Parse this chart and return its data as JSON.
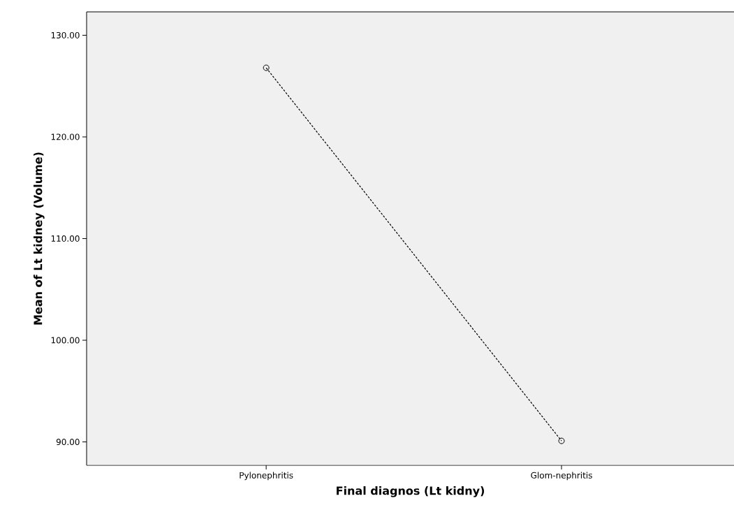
{
  "chart_data": {
    "type": "line",
    "xlabel": "Final diagnos (Lt kidny)",
    "ylabel": "Mean of Lt kidney (Volume)",
    "categories": [
      "Pylonephritis",
      "Glom-nephritis"
    ],
    "series": [
      {
        "color": "#000000",
        "values": [
          126.8,
          90.1
        ]
      }
    ],
    "ylim": [
      87.7,
      132.3
    ],
    "yticks": [
      {
        "value": 90,
        "label": "90.00"
      },
      {
        "value": 100,
        "label": "100.00"
      },
      {
        "value": 110,
        "label": "110.00"
      },
      {
        "value": 120,
        "label": "120.00"
      },
      {
        "value": 130,
        "label": "130.00"
      }
    ],
    "marker": "circle",
    "line_style": "dashed",
    "grid": false
  }
}
